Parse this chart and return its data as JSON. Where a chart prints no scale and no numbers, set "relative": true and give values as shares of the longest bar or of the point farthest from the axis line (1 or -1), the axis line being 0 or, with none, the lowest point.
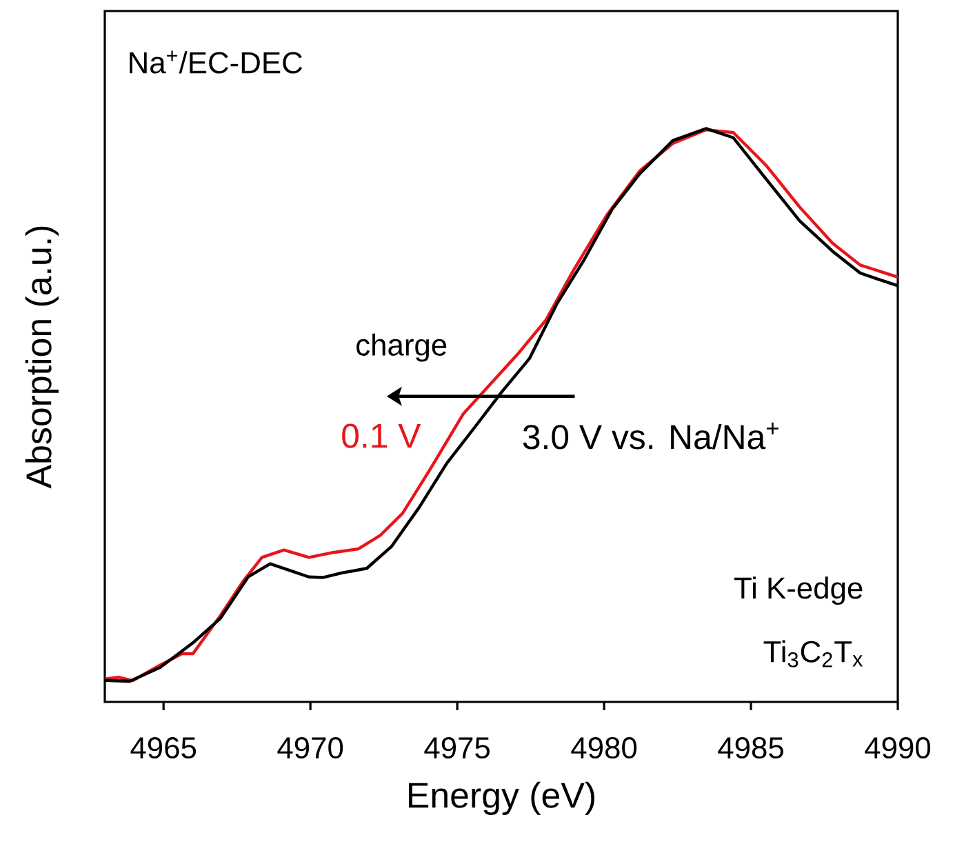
{
  "chart_data": {
    "type": "line",
    "relative": true,
    "xlabel": "Energy (eV)",
    "ylabel": "Absorption (a.u.)",
    "xlim": [
      4963,
      4990
    ],
    "xticks": [
      4965,
      4970,
      4975,
      4980,
      4985,
      4990
    ],
    "grid": false,
    "marker": "none",
    "line_style": "solid",
    "annotations": [
      "Na$^{+}$/EC-DEC",
      "charge",
      "Ti K-edge",
      "Ti$_{3}$C$_{2}$T$_{x}$"
    ],
    "series": [
      {
        "name": "0.1 V",
        "color": "#e8151b",
        "x": [
          4963.0,
          4963.47,
          4963.94,
          4964.88,
          4965.63,
          4966.0,
          4966.94,
          4967.69,
          4968.35,
          4969.1,
          4969.95,
          4970.7,
          4971.64,
          4972.39,
          4973.14,
          4974.08,
          4975.2,
          4976.14,
          4977.08,
          4978.02,
          4978.96,
          4980.09,
          4981.21,
          4982.34,
          4983.47,
          4984.4,
          4985.53,
          4986.66,
          4987.78,
          4988.72,
          4990.0
        ],
        "values": [
          0.04,
          0.043,
          0.037,
          0.064,
          0.084,
          0.084,
          0.151,
          0.209,
          0.252,
          0.265,
          0.252,
          0.26,
          0.267,
          0.291,
          0.329,
          0.406,
          0.502,
          0.555,
          0.608,
          0.666,
          0.753,
          0.849,
          0.926,
          0.974,
          0.998,
          0.993,
          0.935,
          0.863,
          0.8,
          0.762,
          0.741
        ]
      },
      {
        "name": "3.0 V vs. Na/Na$^{+}$",
        "color": "#000000",
        "x": [
          4963.0,
          4963.85,
          4964.88,
          4966.0,
          4966.94,
          4967.88,
          4968.63,
          4969.2,
          4969.95,
          4970.42,
          4971.07,
          4971.92,
          4972.76,
          4973.7,
          4974.64,
          4975.58,
          4976.52,
          4977.46,
          4978.4,
          4979.33,
          4980.27,
          4981.21,
          4982.34,
          4983.47,
          4984.4,
          4985.53,
          4986.66,
          4987.78,
          4988.72,
          4989.29,
          4990.0
        ],
        "values": [
          0.0375,
          0.036,
          0.06,
          0.103,
          0.146,
          0.218,
          0.241,
          0.231,
          0.218,
          0.217,
          0.225,
          0.233,
          0.271,
          0.339,
          0.416,
          0.478,
          0.541,
          0.599,
          0.695,
          0.772,
          0.859,
          0.921,
          0.979,
          1.0,
          0.984,
          0.911,
          0.839,
          0.786,
          0.748,
          0.738,
          0.726
        ]
      }
    ]
  }
}
